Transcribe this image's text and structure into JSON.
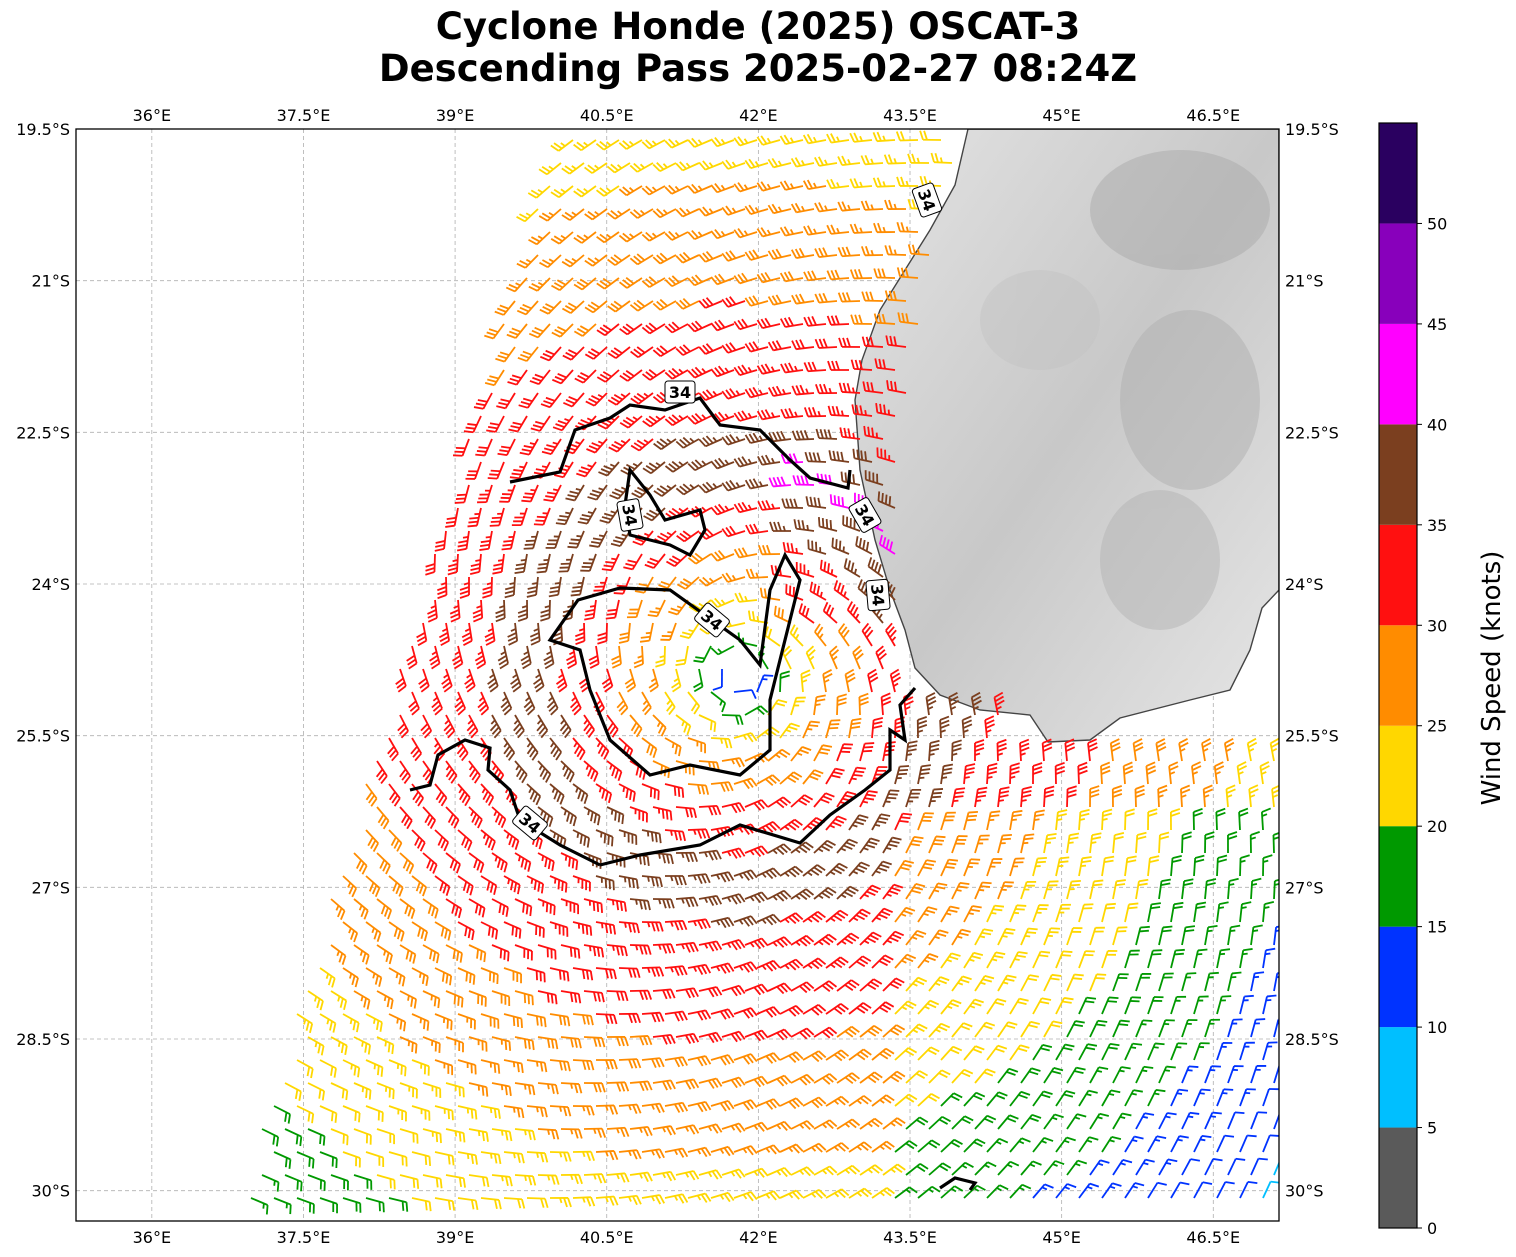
{
  "title": {
    "line1": "Cyclone Honde (2025) OSCAT-3",
    "line2": "Descending Pass 2025-02-27 08:24Z"
  },
  "map": {
    "lon_range": [
      35.25,
      47.15
    ],
    "lat_range": [
      -30.3,
      -19.5
    ],
    "lon_ticks": [
      "36°E",
      "37.5°E",
      "39°E",
      "40.5°E",
      "42°E",
      "43.5°E",
      "45°E",
      "46.5°E"
    ],
    "lat_ticks": [
      "19.5°S",
      "21°S",
      "22.5°S",
      "24°S",
      "25.5°S",
      "27°S",
      "28.5°S",
      "30°S"
    ],
    "grid": true,
    "coastline_color": "#333333",
    "land_shading": "grey-terrain",
    "center": {
      "lon": 41.8,
      "lat": -24.9
    },
    "contour_label": "34",
    "contour_labels": [
      "34",
      "34",
      "34",
      "34",
      "34",
      "34"
    ]
  },
  "colorbar": {
    "label": "Wind Speed (knots)",
    "ticks": [
      "0",
      "5",
      "10",
      "15",
      "20",
      "25",
      "30",
      "35",
      "40",
      "45",
      "50"
    ],
    "bins": [
      {
        "from": 0,
        "to": 5,
        "color": "#5a5a5a"
      },
      {
        "from": 5,
        "to": 10,
        "color": "#00bfff"
      },
      {
        "from": 10,
        "to": 15,
        "color": "#0033ff"
      },
      {
        "from": 15,
        "to": 20,
        "color": "#009900"
      },
      {
        "from": 20,
        "to": 25,
        "color": "#ffd700"
      },
      {
        "from": 25,
        "to": 30,
        "color": "#ff8c00"
      },
      {
        "from": 30,
        "to": 35,
        "color": "#ff1010"
      },
      {
        "from": 35,
        "to": 40,
        "color": "#7b3f1f"
      },
      {
        "from": 40,
        "to": 45,
        "color": "#ff00ff"
      },
      {
        "from": 45,
        "to": 50,
        "color": "#8800bb"
      },
      {
        "from": 50,
        "to": 55,
        "color": "#2a0060"
      }
    ]
  }
}
